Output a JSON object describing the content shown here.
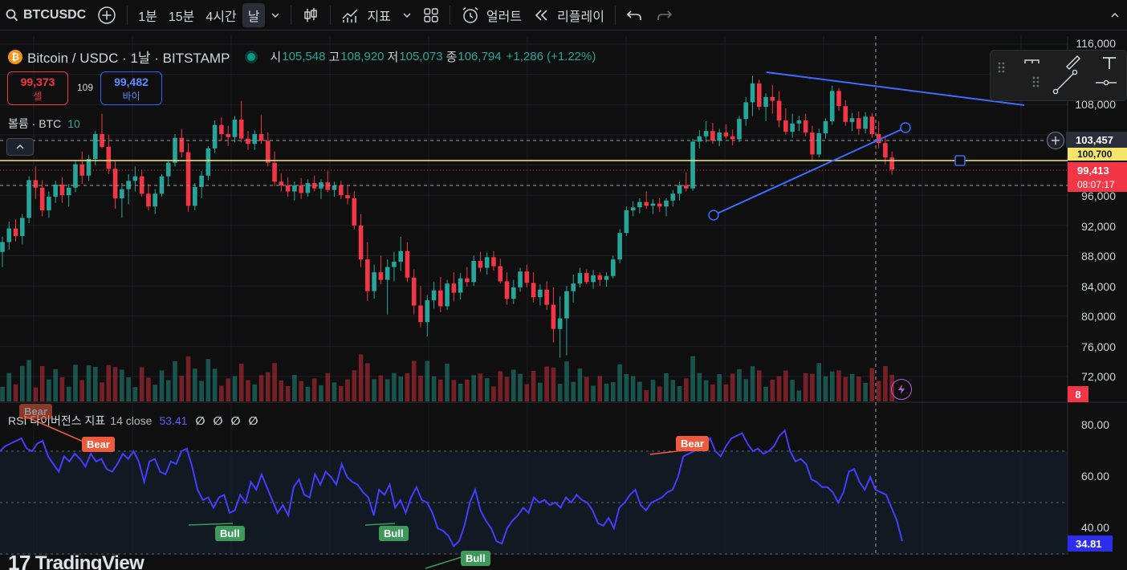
{
  "toolbar": {
    "symbol": "BTCUSDC",
    "intervals": [
      "1분",
      "15분",
      "4시간",
      "날"
    ],
    "active_interval": "날",
    "indicators_label": "지표",
    "alert_label": "얼러트",
    "replay_label": "리플레이"
  },
  "legend": {
    "logo_letter": "₿",
    "symbol_line": "Bitcoin / USDC · 1날 · BITSTAMP",
    "open_label": "시",
    "open": "105,548",
    "high_label": "고",
    "high": "108,920",
    "low_label": "저",
    "low": "105,073",
    "close_label": "종",
    "close": "106,794",
    "change": "+1,286 (+1.22%)"
  },
  "trade": {
    "sell_price": "99,373",
    "sell_label": "셀",
    "spread": "109",
    "buy_price": "99,482",
    "buy_label": "바이"
  },
  "volume": {
    "label": "볼륨 · BTC",
    "value": "10"
  },
  "price_axis": {
    "labels": [
      "116,000",
      "108,000",
      "96,000",
      "92,000",
      "88,000",
      "84,000",
      "80,000",
      "76,000",
      "72,000"
    ],
    "crosshair_price": "103,457",
    "line_price": "100,700",
    "last_price": "99,413",
    "countdown": "08:07:17",
    "alerts_count": "8"
  },
  "rsi": {
    "title": "RSI 다이버전스 지표",
    "params": "14 close",
    "value": "53.41",
    "nulls": [
      "∅",
      "∅",
      "∅",
      "∅"
    ],
    "axis_labels": [
      "80.00",
      "60.00",
      "40.00"
    ],
    "last_value": "34.81",
    "labels": {
      "bear": "Bear",
      "bull": "Bull"
    }
  },
  "branding": {
    "logo_mark": "17",
    "name": "TradingView"
  },
  "colors": {
    "up": "#26a69a",
    "down": "#f23645",
    "rsi": "#4a3aff",
    "trend": "#3d6bff",
    "hline": "#f5e66b"
  },
  "chart_data": {
    "type": "candlestick",
    "ylim": [
      68000,
      118000
    ],
    "candles": [
      [
        88500,
        90500,
        86500,
        89800
      ],
      [
        89800,
        92500,
        88800,
        91600
      ],
      [
        91600,
        92800,
        89900,
        90600
      ],
      [
        90600,
        93500,
        89500,
        93000
      ],
      [
        93000,
        98500,
        92300,
        98000
      ],
      [
        98000,
        99800,
        95500,
        97000
      ],
      [
        97000,
        98000,
        93200,
        94000
      ],
      [
        94000,
        96500,
        93000,
        95800
      ],
      [
        95800,
        97900,
        95000,
        97400
      ],
      [
        97400,
        98400,
        95000,
        96000
      ],
      [
        96000,
        97500,
        94500,
        97000
      ],
      [
        97000,
        100500,
        96400,
        100100
      ],
      [
        100100,
        101800,
        97500,
        98600
      ],
      [
        98600,
        101300,
        97900,
        100800
      ],
      [
        100800,
        104500,
        100000,
        104100
      ],
      [
        104100,
        106800,
        102200,
        102400
      ],
      [
        102400,
        104000,
        98800,
        99500
      ],
      [
        99500,
        100500,
        94200,
        95600
      ],
      [
        95600,
        97600,
        93000,
        96800
      ],
      [
        96800,
        98800,
        94800,
        97900
      ],
      [
        97900,
        99800,
        96500,
        98500
      ],
      [
        98500,
        99400,
        95800,
        96200
      ],
      [
        96200,
        97500,
        94000,
        94500
      ],
      [
        94500,
        96800,
        93500,
        96200
      ],
      [
        96200,
        98800,
        95800,
        98500
      ],
      [
        98500,
        100600,
        97200,
        100300
      ],
      [
        100300,
        104100,
        99800,
        103600
      ],
      [
        103600,
        104800,
        101000,
        101700
      ],
      [
        101700,
        102900,
        93800,
        94600
      ],
      [
        94600,
        97600,
        94000,
        97100
      ],
      [
        97100,
        99200,
        95600,
        98600
      ],
      [
        98600,
        102500,
        98000,
        102200
      ],
      [
        102200,
        105900,
        101600,
        105300
      ],
      [
        105300,
        106300,
        103200,
        104100
      ],
      [
        104100,
        105200,
        102500,
        103700
      ],
      [
        103700,
        106500,
        103000,
        106000
      ],
      [
        106000,
        108500,
        103000,
        103500
      ],
      [
        103500,
        104500,
        102000,
        102800
      ],
      [
        102800,
        104600,
        102000,
        104100
      ],
      [
        104100,
        106600,
        102800,
        103200
      ],
      [
        103200,
        104300,
        99800,
        100300
      ],
      [
        100300,
        101800,
        97200,
        97800
      ],
      [
        97800,
        98900,
        96500,
        97300
      ],
      [
        97300,
        98400,
        95800,
        96500
      ],
      [
        96500,
        97800,
        95300,
        97300
      ],
      [
        97300,
        98300,
        95500,
        96300
      ],
      [
        96300,
        98100,
        95800,
        97600
      ],
      [
        97600,
        98600,
        96500,
        96900
      ],
      [
        96900,
        98100,
        95500,
        97700
      ],
      [
        97700,
        99200,
        96400,
        96700
      ],
      [
        96700,
        97800,
        95800,
        97300
      ],
      [
        97300,
        97900,
        95500,
        96000
      ],
      [
        96000,
        97300,
        94800,
        95600
      ],
      [
        95600,
        96500,
        91500,
        92000
      ],
      [
        92000,
        93500,
        86500,
        87500
      ],
      [
        87500,
        89800,
        82000,
        83300
      ],
      [
        83300,
        86800,
        82300,
        85800
      ],
      [
        85800,
        88000,
        84200,
        84800
      ],
      [
        84800,
        87500,
        80200,
        86500
      ],
      [
        86500,
        88500,
        84600,
        87200
      ],
      [
        87200,
        90500,
        86000,
        88600
      ],
      [
        88600,
        89800,
        84500,
        85100
      ],
      [
        85100,
        86200,
        80200,
        81400
      ],
      [
        81400,
        84000,
        78500,
        79200
      ],
      [
        79200,
        82800,
        77300,
        82100
      ],
      [
        82100,
        84500,
        81000,
        83400
      ],
      [
        83400,
        85200,
        80500,
        81300
      ],
      [
        81300,
        84800,
        80800,
        84300
      ],
      [
        84300,
        85800,
        82000,
        83100
      ],
      [
        83100,
        85700,
        82200,
        85000
      ],
      [
        85000,
        86500,
        83900,
        84500
      ],
      [
        84500,
        88000,
        84000,
        87300
      ],
      [
        87300,
        88500,
        85800,
        86400
      ],
      [
        86400,
        88400,
        85500,
        87800
      ],
      [
        87800,
        88600,
        86000,
        86600
      ],
      [
        86600,
        87600,
        84300,
        84600
      ],
      [
        84600,
        85800,
        81500,
        82300
      ],
      [
        82300,
        84800,
        81600,
        83800
      ],
      [
        83800,
        86400,
        83200,
        85900
      ],
      [
        85900,
        86800,
        83800,
        84400
      ],
      [
        84400,
        85800,
        81800,
        82500
      ],
      [
        82500,
        84200,
        81400,
        83500
      ],
      [
        83500,
        84600,
        80800,
        81500
      ],
      [
        81500,
        83800,
        76500,
        78300
      ],
      [
        78300,
        82600,
        74500,
        79700
      ],
      [
        79700,
        84000,
        74800,
        83300
      ],
      [
        83300,
        85500,
        81800,
        84300
      ],
      [
        84300,
        86400,
        83800,
        85700
      ],
      [
        85700,
        86200,
        84200,
        84500
      ],
      [
        84500,
        86100,
        83600,
        85400
      ],
      [
        85400,
        85800,
        84000,
        84800
      ],
      [
        84800,
        85800,
        83900,
        85300
      ],
      [
        85300,
        88000,
        85000,
        87500
      ],
      [
        87500,
        91500,
        87000,
        91000
      ],
      [
        91000,
        94500,
        90600,
        94000
      ],
      [
        94000,
        95200,
        93200,
        94400
      ],
      [
        94400,
        95600,
        93600,
        95100
      ],
      [
        95100,
        96500,
        94200,
        94600
      ],
      [
        94600,
        95500,
        93500,
        94900
      ],
      [
        94900,
        95600,
        93800,
        94500
      ],
      [
        94500,
        95600,
        93200,
        95300
      ],
      [
        95300,
        96700,
        94500,
        96200
      ],
      [
        96200,
        97800,
        95300,
        97300
      ],
      [
        97300,
        99000,
        96500,
        96900
      ],
      [
        96900,
        103500,
        96600,
        103100
      ],
      [
        103100,
        104600,
        102200,
        103800
      ],
      [
        103800,
        105800,
        103000,
        104500
      ],
      [
        104500,
        105600,
        102800,
        103200
      ],
      [
        103200,
        104800,
        102500,
        104300
      ],
      [
        104300,
        105400,
        103500,
        103800
      ],
      [
        103800,
        104700,
        102600,
        103400
      ],
      [
        103400,
        106500,
        103000,
        106100
      ],
      [
        106100,
        109000,
        105200,
        108300
      ],
      [
        108300,
        111800,
        106500,
        110800
      ],
      [
        110800,
        111300,
        107300,
        107700
      ],
      [
        107700,
        109500,
        105800,
        109000
      ],
      [
        109000,
        110600,
        106800,
        108500
      ],
      [
        108500,
        109800,
        105000,
        105900
      ],
      [
        105900,
        107500,
        104000,
        104400
      ],
      [
        104400,
        106800,
        103600,
        105500
      ],
      [
        105500,
        106500,
        104500,
        105900
      ],
      [
        105900,
        106800,
        103800,
        104300
      ],
      [
        104300,
        105200,
        100500,
        101400
      ],
      [
        101400,
        104800,
        101000,
        104200
      ],
      [
        104200,
        106200,
        103500,
        105800
      ],
      [
        105800,
        110500,
        105300,
        109800
      ],
      [
        109800,
        110200,
        107200,
        107800
      ],
      [
        107800,
        108600,
        105200,
        105700
      ],
      [
        105700,
        106900,
        104500,
        106200
      ],
      [
        106200,
        107100,
        104000,
        104800
      ],
      [
        104800,
        107000,
        104200,
        106400
      ],
      [
        106400,
        106900,
        103600,
        104100
      ],
      [
        104100,
        105800,
        102200,
        102900
      ],
      [
        102900,
        103900,
        100100,
        101000
      ],
      [
        101000,
        101800,
        98700,
        99413
      ]
    ],
    "volume_series": "per-candle relative volume bars (not labeled)",
    "rsi_values": [
      70,
      72,
      73,
      74,
      75,
      71,
      70,
      73,
      74,
      68,
      65,
      62,
      68,
      66,
      69,
      67,
      64,
      69,
      66,
      67,
      63,
      62,
      65,
      69,
      67,
      70,
      66,
      58,
      66,
      67,
      62,
      61,
      66,
      65,
      70,
      71,
      64,
      55,
      51,
      52,
      48,
      52,
      53,
      46,
      47,
      53,
      50,
      58,
      55,
      61,
      56,
      51,
      46,
      49,
      45,
      56,
      59,
      53,
      52,
      61,
      57,
      62,
      60,
      57,
      65,
      60,
      58,
      57,
      54,
      52,
      45,
      55,
      53,
      57,
      48,
      51,
      46,
      52,
      56,
      51,
      50,
      46,
      40,
      39,
      37,
      33,
      35,
      41,
      50,
      55,
      47,
      43,
      40,
      35,
      34,
      40,
      43,
      45,
      48,
      46,
      52,
      50,
      51,
      49,
      50,
      48,
      52,
      50,
      53,
      51,
      50,
      47,
      42,
      41,
      44,
      40,
      48,
      50,
      53,
      55,
      49,
      47,
      50,
      51,
      52,
      54,
      55,
      60,
      68,
      69,
      70,
      71,
      72,
      75,
      70,
      68,
      72,
      75,
      76,
      77,
      73,
      70,
      71,
      69,
      70,
      72,
      76,
      78,
      70,
      66,
      67,
      65,
      59,
      58,
      56,
      56,
      54,
      50,
      54,
      62,
      63,
      58,
      55,
      60,
      55,
      54,
      53,
      48,
      43,
      35
    ]
  }
}
